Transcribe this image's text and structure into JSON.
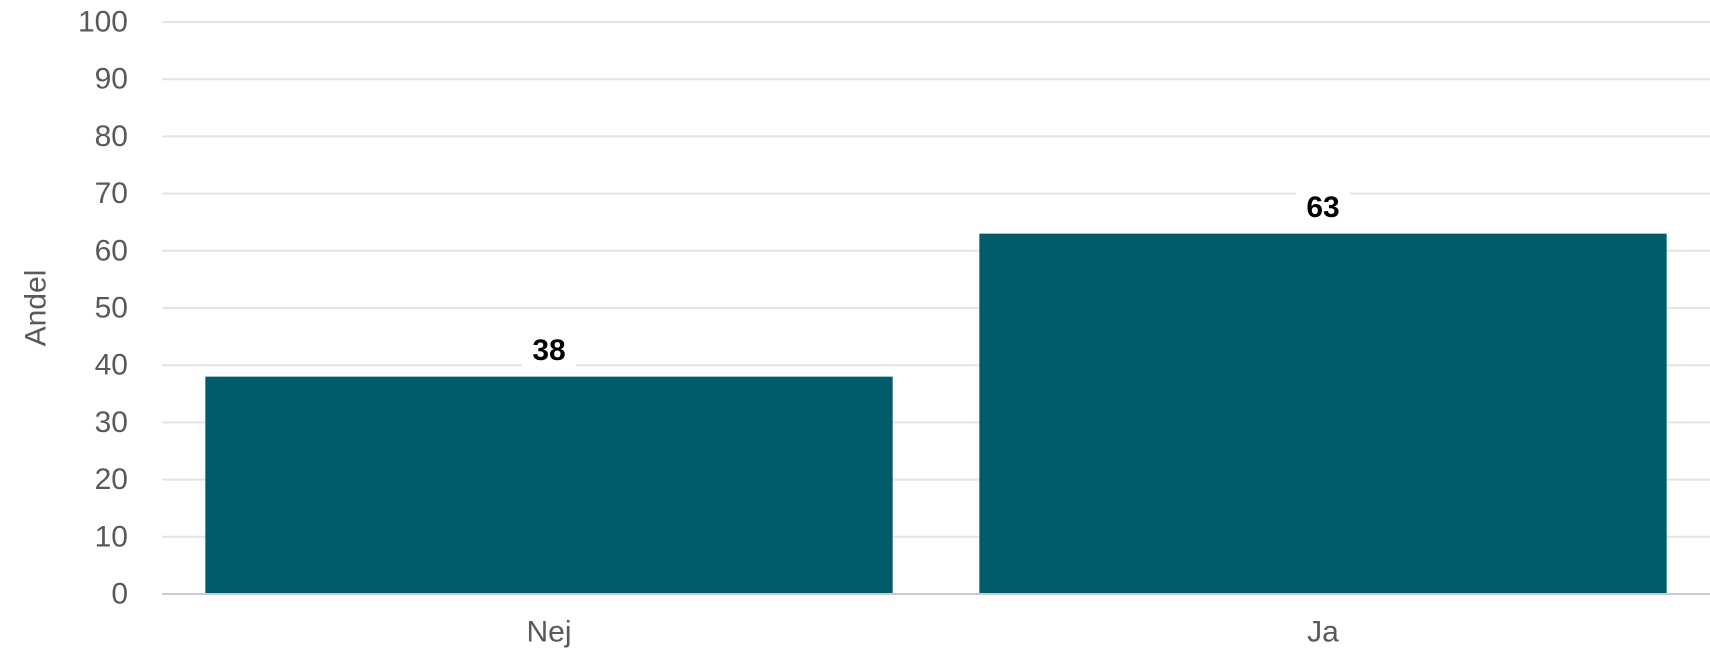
{
  "chart_data": {
    "type": "bar",
    "categories": [
      "Nej",
      "Ja"
    ],
    "values": [
      38,
      63
    ],
    "data_labels": [
      "38",
      "63"
    ],
    "title": "",
    "xlabel": "",
    "ylabel": "Andel",
    "ylim": [
      0,
      100
    ],
    "yticks": [
      "0",
      "10",
      "20",
      "30",
      "40",
      "50",
      "60",
      "70",
      "80",
      "90",
      "100"
    ],
    "grid": true,
    "bar_color": "#005b6a"
  }
}
